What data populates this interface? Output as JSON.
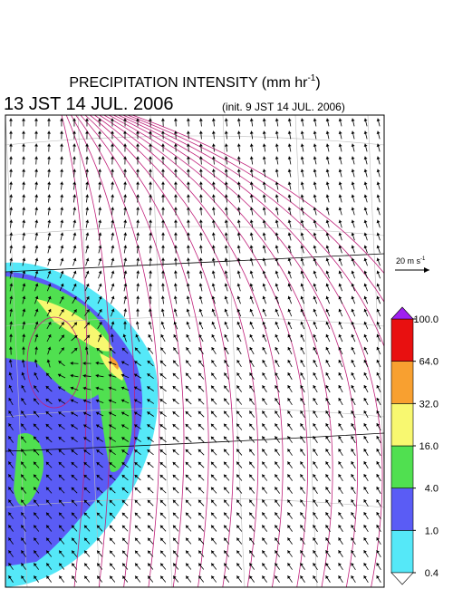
{
  "header": {
    "title": "PRECIPITATION INTENSITY (mm hr",
    "title_exp": "-1",
    "title_end": ")",
    "valid_time": "13 JST 14 JUL. 2006",
    "init_time": "(init. 9 JST 14 JUL. 2006)"
  },
  "scale": {
    "label": "20 m s",
    "label_exp": "-1"
  },
  "colorbar": {
    "ticks": [
      {
        "value": 0.4,
        "label": "0.4"
      },
      {
        "value": 1,
        "label": "1.0"
      },
      {
        "value": 4,
        "label": "4.0"
      },
      {
        "value": 16,
        "label": "16.0"
      },
      {
        "value": 32,
        "label": "32.0"
      },
      {
        "value": 64,
        "label": "64.0"
      },
      {
        "value": 100,
        "label": "100.0"
      }
    ],
    "colors": [
      "#55e8f8",
      "#5a5cf5",
      "#50e050",
      "#f8f870",
      "#f8a030",
      "#e81010"
    ],
    "under_color": "#ffffff",
    "over_color": "#a020f0"
  }
}
